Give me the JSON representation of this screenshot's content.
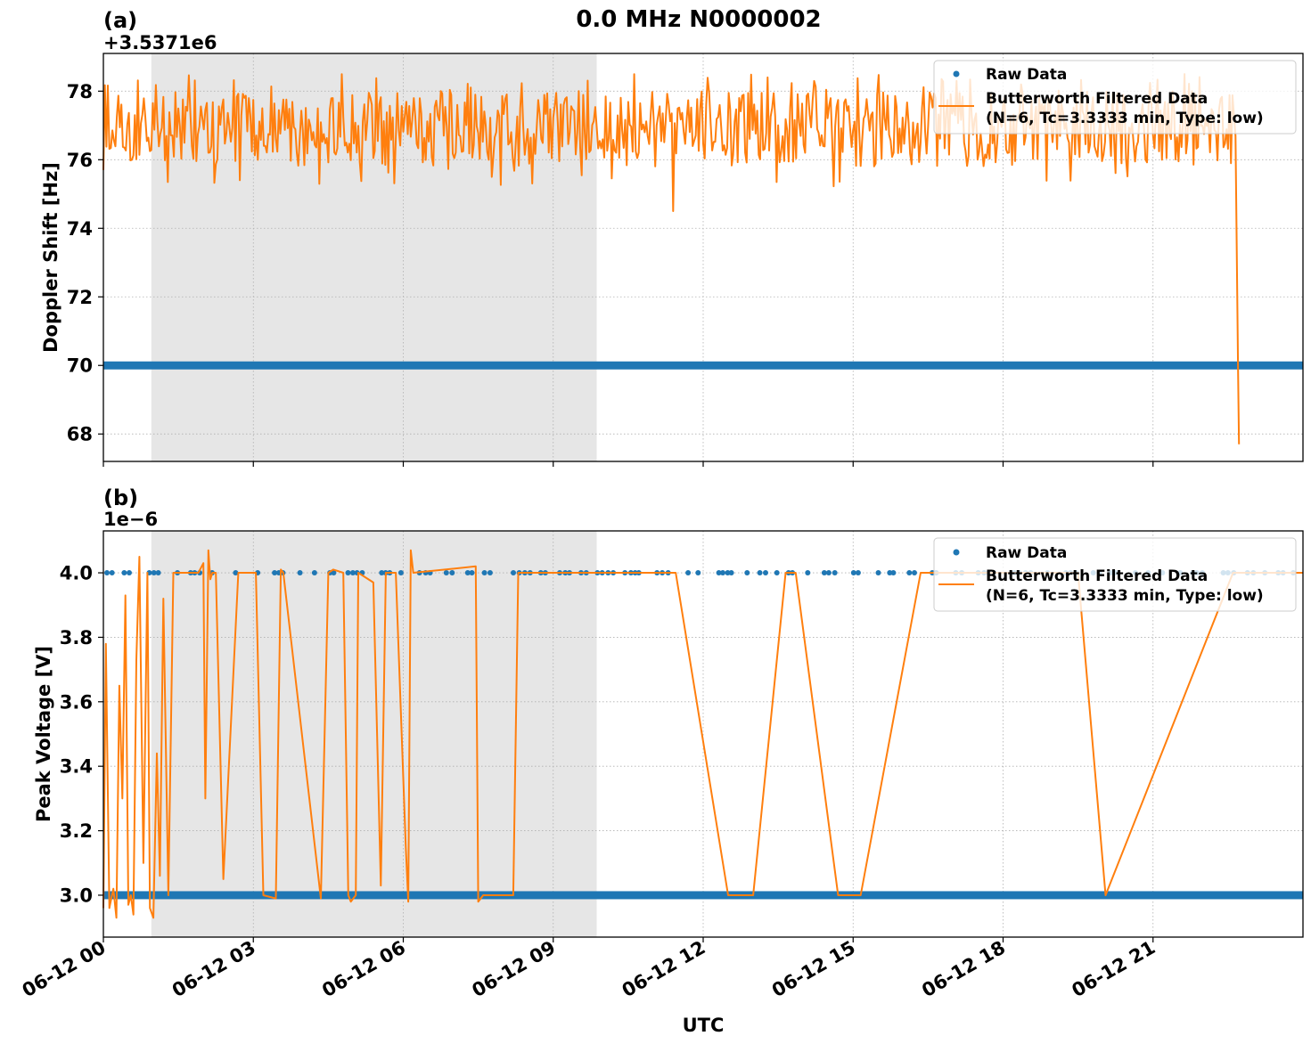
{
  "figure": {
    "title": "0.0 MHz N0000002",
    "xlabel": "UTC",
    "x_ticks": [
      "06-12 00",
      "06-12 03",
      "06-12 06",
      "06-12 09",
      "06-12 12",
      "06-12 15",
      "06-12 18",
      "06-12 21"
    ],
    "colors": {
      "raw": "#1f77b4",
      "filtered": "#ff7f0e",
      "shade": "#e6e6e6",
      "grid": "#b0b0b0"
    }
  },
  "chart_data": [
    {
      "type": "line",
      "panel_label": "(a)",
      "offset_text": "+3.5371e6",
      "title": "0.0 MHz N0000002",
      "xlabel": "UTC",
      "ylabel": "Doppler Shift [Hz]",
      "y_ticks": [
        "68",
        "70",
        "72",
        "74",
        "76",
        "78"
      ],
      "ylim": [
        67.2,
        79.1
      ],
      "xlim_hours": [
        0,
        24
      ],
      "shaded_region_hours": [
        0.96,
        9.87
      ],
      "grid": true,
      "legend_position": "upper right",
      "legend": [
        "Raw Data",
        "Butterworth Filtered Data\n(N=6, Tc=3.3333 min, Type: low)"
      ],
      "series": [
        {
          "name": "Raw Data",
          "style": "scatter",
          "description": "dense points at constant value",
          "x_hours": [
            0,
            24
          ],
          "values": [
            70.0,
            70.0
          ]
        },
        {
          "name": "Butterworth Filtered Data (N=6, Tc=3.3333 min, Type: low)",
          "style": "line",
          "description": "noisy around 76.9 Hz (range ~75-78.5) from 0h to ~22.7h, then drops sharply to ~67.7",
          "x_hours": [
            0,
            0.1,
            0.5,
            1.0,
            2.0,
            3.0,
            4.0,
            5.0,
            6.0,
            7.0,
            8.0,
            9.0,
            10.0,
            11.0,
            11.4,
            12.0,
            13.0,
            14.0,
            15.0,
            16.0,
            17.0,
            18.0,
            19.0,
            20.0,
            21.0,
            22.0,
            22.6,
            22.7,
            22.72
          ],
          "values": [
            75.7,
            77.0,
            76.8,
            77.0,
            76.7,
            76.9,
            77.0,
            76.8,
            76.9,
            77.1,
            76.8,
            77.0,
            76.9,
            76.8,
            74.5,
            76.9,
            77.0,
            76.8,
            76.9,
            77.1,
            76.8,
            76.9,
            76.7,
            76.8,
            76.9,
            76.7,
            76.7,
            70.0,
            67.7
          ]
        }
      ]
    },
    {
      "type": "line",
      "panel_label": "(b)",
      "offset_text": "1e−6",
      "xlabel": "UTC",
      "ylabel": "Peak Voltage [V]",
      "y_ticks": [
        "3.0",
        "3.2",
        "3.4",
        "3.6",
        "3.8",
        "4.0"
      ],
      "ylim": [
        2.87,
        4.13
      ],
      "y_scale_factor": 1e-06,
      "xlim_hours": [
        0,
        24
      ],
      "shaded_region_hours": [
        0.96,
        9.87
      ],
      "grid": true,
      "legend_position": "upper right",
      "legend": [
        "Raw Data",
        "Butterworth Filtered Data\n(N=6, Tc=3.3333 min, Type: low)"
      ],
      "series": [
        {
          "name": "Raw Data",
          "style": "scatter",
          "description": "values are either 3.0 (dense continuous band) or 4.0 (sparse dots)",
          "levels": [
            3.0,
            4.0
          ]
        },
        {
          "name": "Butterworth Filtered Data (N=6, Tc=3.3333 min, Type: low)",
          "style": "line",
          "x_hours": [
            0.0,
            0.05,
            0.12,
            0.2,
            0.26,
            0.32,
            0.38,
            0.44,
            0.5,
            0.55,
            0.6,
            0.66,
            0.72,
            0.8,
            0.88,
            0.93,
            1.0,
            1.07,
            1.13,
            1.2,
            1.3,
            1.4,
            1.5,
            1.9,
            2.0,
            2.04,
            2.1,
            2.14,
            2.18,
            2.25,
            2.4,
            2.7,
            3.05,
            3.2,
            3.45,
            3.55,
            3.6,
            4.35,
            4.5,
            4.6,
            4.8,
            4.9,
            4.95,
            5.05,
            5.1,
            5.4,
            5.55,
            5.65,
            5.85,
            6.05,
            6.1,
            6.15,
            6.2,
            7.45,
            7.5,
            7.6,
            8.2,
            8.3,
            9.0,
            10.0,
            11.35,
            11.45,
            12.5,
            13.0,
            13.65,
            13.85,
            14.7,
            15.15,
            16.35,
            16.6,
            19.5,
            20.05,
            22.6,
            24
          ],
          "values": [
            2.96,
            3.78,
            2.96,
            3.02,
            2.93,
            3.65,
            3.3,
            3.93,
            2.97,
            3.0,
            2.94,
            3.73,
            4.05,
            3.1,
            4.0,
            2.96,
            2.93,
            3.44,
            3.06,
            3.92,
            3.0,
            4.0,
            4.0,
            4.0,
            4.03,
            3.3,
            4.07,
            3.98,
            4.0,
            4.0,
            3.05,
            4.0,
            4.0,
            3.0,
            2.99,
            4.01,
            4.0,
            2.99,
            4.0,
            4.01,
            4.0,
            3.0,
            2.98,
            3.0,
            4.0,
            3.97,
            3.03,
            4.0,
            4.0,
            3.15,
            2.98,
            4.07,
            4.0,
            4.02,
            2.98,
            3.0,
            3.0,
            4.0,
            4.0,
            4.0,
            4.0,
            4.0,
            3.0,
            3.0,
            4.0,
            4.0,
            3.0,
            3.0,
            4.0,
            4.0,
            4.0,
            3.0,
            4.0,
            4.0
          ]
        }
      ]
    }
  ]
}
